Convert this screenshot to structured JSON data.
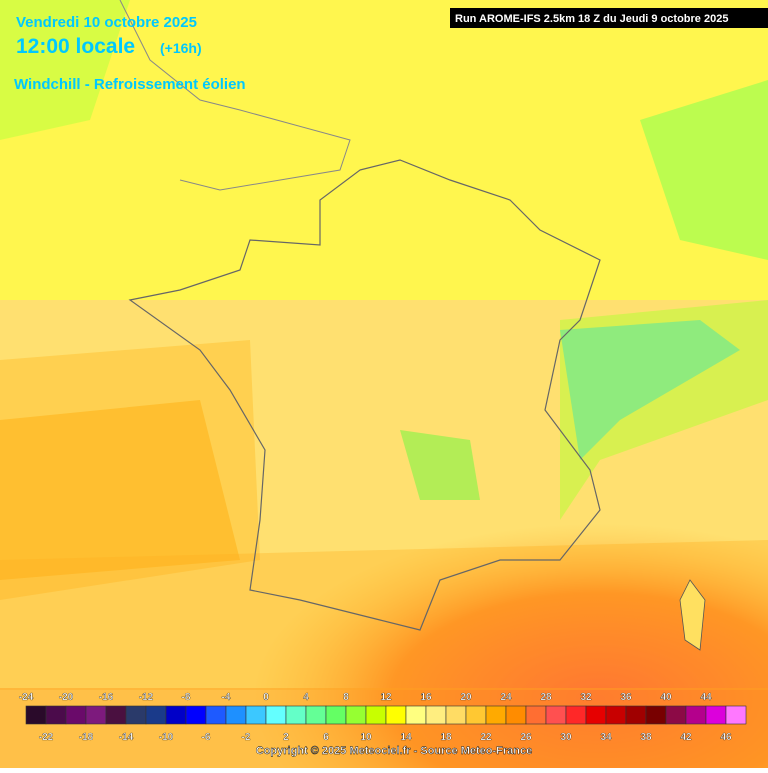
{
  "header": {
    "date": "Vendredi 10 octobre 2025",
    "time": "12:00 locale",
    "offset": "(+16h)",
    "variable": "Windchill - Refroissement éolien",
    "run": "Run AROME-IFS 2.5km 18 Z du Jeudi 9 octobre 2025"
  },
  "colorbar": {
    "values": [
      -24,
      -22,
      -20,
      -18,
      -16,
      -14,
      -12,
      -10,
      -8,
      -6,
      -4,
      -2,
      0,
      2,
      4,
      6,
      8,
      10,
      12,
      14,
      16,
      18,
      20,
      22,
      24,
      26,
      28,
      30,
      32,
      34,
      36,
      38,
      40,
      42,
      44,
      46
    ],
    "colors": [
      "#2a0a2a",
      "#4b0b4b",
      "#6a0a6a",
      "#7d1a7d",
      "#4a1040",
      "#2a3a6a",
      "#1a3a8a",
      "#0000c8",
      "#0000ff",
      "#1e5aff",
      "#1e90ff",
      "#3cc8ff",
      "#64ffff",
      "#64ffc8",
      "#64ff96",
      "#64ff64",
      "#96ff32",
      "#c8ff00",
      "#ffff00",
      "#ffff80",
      "#ffee80",
      "#ffdc64",
      "#ffc832",
      "#ffaa00",
      "#ff8c00",
      "#ff6e32",
      "#ff5050",
      "#ff2828",
      "#e60000",
      "#c80000",
      "#a00000",
      "#780000",
      "#8c0a46",
      "#b4008c",
      "#dc00dc",
      "#ff78ff"
    ]
  },
  "footer": {
    "copyright": "Copyright © 2025 Meteociel.fr - Source Meteo-France"
  }
}
